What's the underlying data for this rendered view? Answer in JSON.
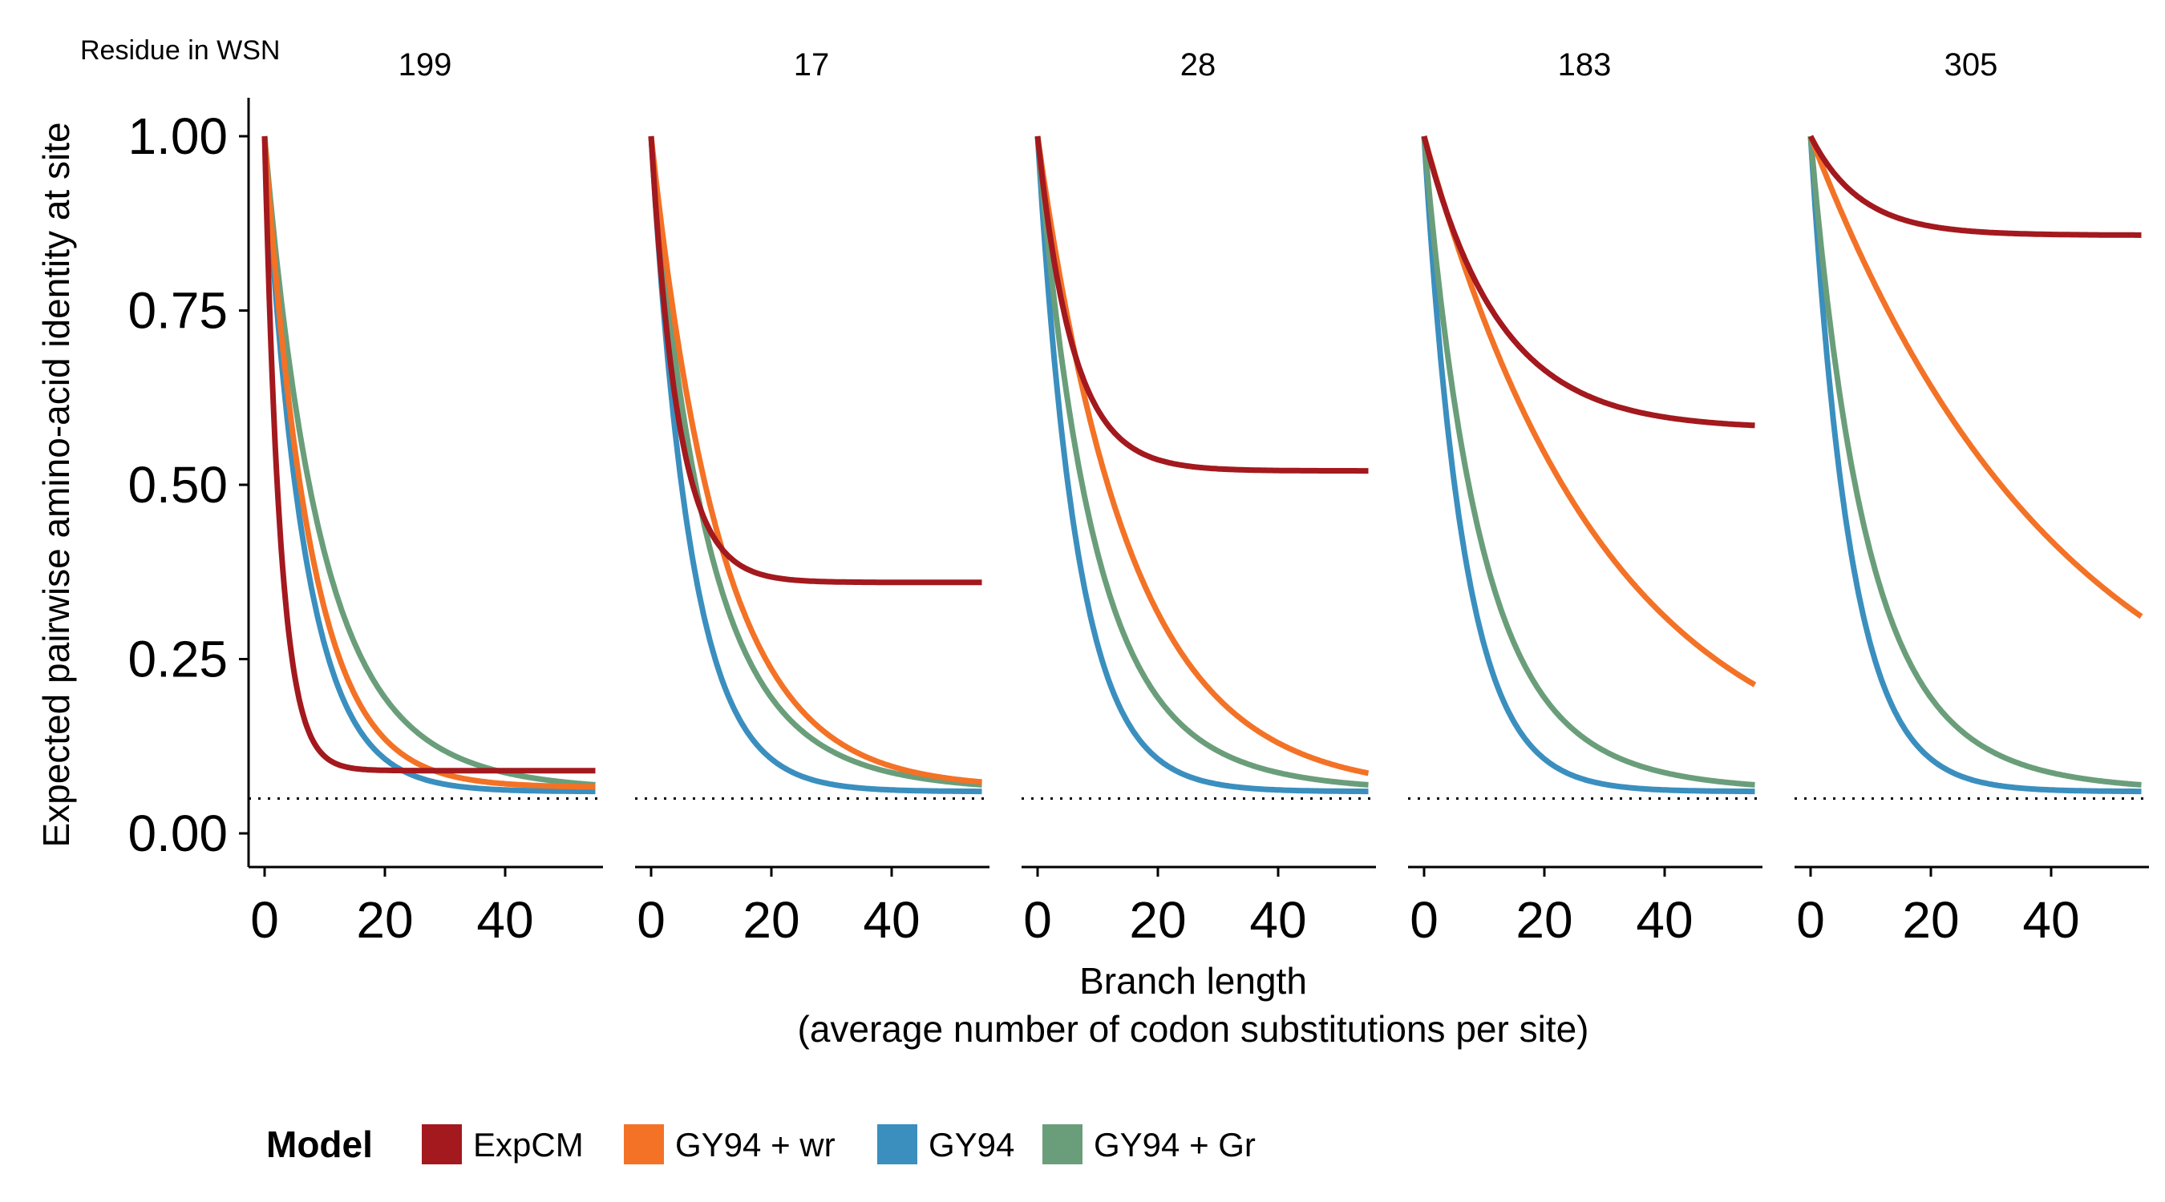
{
  "chart_data": {
    "type": "line",
    "facet_header": "Residue in WSN",
    "ylabel": "Expected pairwise amino-acid identity at site",
    "xlabel_line1": "Branch length",
    "xlabel_line2": "(average number of codon substitutions per site)",
    "xlim": [
      0,
      55
    ],
    "ylim": [
      0,
      1
    ],
    "x_ticks": [
      0,
      20,
      40
    ],
    "x_tick_labels": [
      "0",
      "20",
      "40"
    ],
    "y_ticks": [
      0,
      0.25,
      0.5,
      0.75,
      1.0
    ],
    "y_tick_labels": [
      "0.00",
      "0.25",
      "0.50",
      "0.75",
      "1.00"
    ],
    "reference_line": 0.05,
    "legend": {
      "title": "Model",
      "position": "bottom",
      "entries": [
        "ExpCM",
        "GY94 + wr",
        "GY94",
        "GY94 + Gr"
      ]
    },
    "colors": {
      "ExpCM": "#a3191e",
      "GY94 + wr": "#f37226",
      "GY94": "#3a8fbf",
      "GY94 + Gr": "#6a9e7a"
    },
    "series_order": [
      "GY94",
      "GY94 + Gr",
      "GY94 + wr",
      "ExpCM"
    ],
    "facets": [
      {
        "label": "199",
        "series": [
          {
            "name": "ExpCM",
            "plateau": 0.09,
            "rate": 0.38
          },
          {
            "name": "GY94 + wr",
            "plateau": 0.066,
            "rate": 0.13
          },
          {
            "name": "GY94",
            "plateau": 0.06,
            "rate": 0.15
          },
          {
            "name": "GY94 + Gr",
            "plateau": 0.06,
            "rate": 0.12,
            "slow_rate": 0.06,
            "slow_weight": 0.25
          }
        ]
      },
      {
        "label": "17",
        "series": [
          {
            "name": "ExpCM",
            "plateau": 0.36,
            "rate": 0.22
          },
          {
            "name": "GY94 + wr",
            "plateau": 0.065,
            "rate": 0.085
          },
          {
            "name": "GY94",
            "plateau": 0.06,
            "rate": 0.15
          },
          {
            "name": "GY94 + Gr",
            "plateau": 0.06,
            "rate": 0.12,
            "slow_rate": 0.06,
            "slow_weight": 0.25
          }
        ]
      },
      {
        "label": "28",
        "series": [
          {
            "name": "ExpCM",
            "plateau": 0.52,
            "rate": 0.17
          },
          {
            "name": "GY94 + wr",
            "plateau": 0.06,
            "rate": 0.065
          },
          {
            "name": "GY94",
            "plateau": 0.06,
            "rate": 0.15
          },
          {
            "name": "GY94 + Gr",
            "plateau": 0.06,
            "rate": 0.12,
            "slow_rate": 0.06,
            "slow_weight": 0.25
          }
        ]
      },
      {
        "label": "183",
        "series": [
          {
            "name": "ExpCM",
            "plateau": 0.58,
            "rate": 0.08
          },
          {
            "name": "GY94 + wr",
            "plateau": 0.06,
            "rate": 0.033
          },
          {
            "name": "GY94",
            "plateau": 0.06,
            "rate": 0.15
          },
          {
            "name": "GY94 + Gr",
            "plateau": 0.06,
            "rate": 0.12,
            "slow_rate": 0.06,
            "slow_weight": 0.25
          }
        ]
      },
      {
        "label": "305",
        "series": [
          {
            "name": "ExpCM",
            "plateau": 0.858,
            "rate": 0.12
          },
          {
            "name": "GY94 + wr",
            "plateau": 0.06,
            "rate": 0.024
          },
          {
            "name": "GY94",
            "plateau": 0.06,
            "rate": 0.15
          },
          {
            "name": "GY94 + Gr",
            "plateau": 0.06,
            "rate": 0.12,
            "slow_rate": 0.06,
            "slow_weight": 0.25
          }
        ]
      }
    ]
  }
}
